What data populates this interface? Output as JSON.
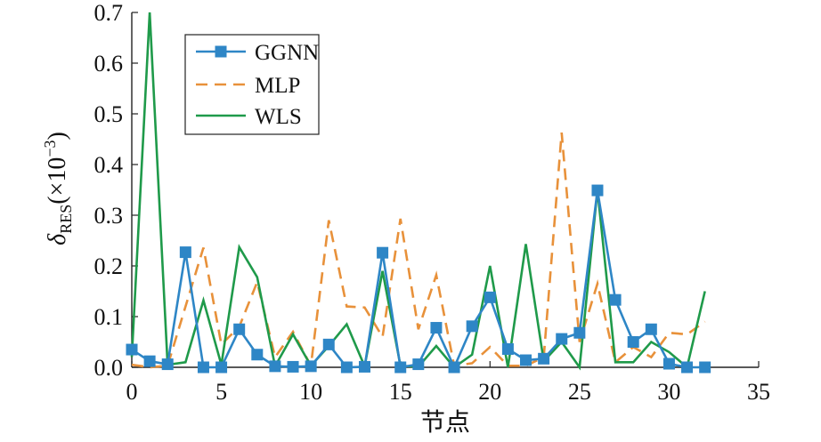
{
  "chart_data": {
    "type": "line",
    "title": "",
    "xlabel": "节点",
    "ylabel": {
      "symbol": "δ",
      "subscript": "RES",
      "unit_prefix": "(×10",
      "exponent": "−3",
      "unit_suffix": ")"
    },
    "xlim": [
      0,
      35
    ],
    "ylim": [
      0,
      0.7
    ],
    "xticks": [
      0,
      5,
      10,
      15,
      20,
      25,
      30,
      35
    ],
    "yticks": [
      0.0,
      0.1,
      0.2,
      0.3,
      0.4,
      0.5,
      0.6,
      0.7
    ],
    "xtick_labels": [
      "0",
      "5",
      "10",
      "15",
      "20",
      "25",
      "30",
      "35"
    ],
    "ytick_labels": [
      "0.0",
      "0.1",
      "0.2",
      "0.3",
      "0.4",
      "0.5",
      "0.6",
      "0.7"
    ],
    "grid": false,
    "legend_position": "top-left",
    "x": [
      0,
      1,
      2,
      3,
      4,
      5,
      6,
      7,
      8,
      9,
      10,
      11,
      12,
      13,
      14,
      15,
      16,
      17,
      18,
      19,
      20,
      21,
      22,
      23,
      24,
      25,
      26,
      27,
      28,
      29,
      30,
      31,
      32
    ],
    "series": [
      {
        "name": "GGNN",
        "color": "#2e86c6",
        "style": "solid-square-markers",
        "values": [
          0.035,
          0.012,
          0.006,
          0.227,
          0.0,
          0.0,
          0.075,
          0.025,
          0.002,
          0.001,
          0.002,
          0.045,
          0.0,
          0.001,
          0.226,
          0.0,
          0.006,
          0.078,
          0.0,
          0.081,
          0.138,
          0.036,
          0.014,
          0.017,
          0.056,
          0.068,
          0.349,
          0.133,
          0.05,
          0.075,
          0.007,
          0.0,
          0.0
        ]
      },
      {
        "name": "MLP",
        "color": "#e8913a",
        "style": "dashed",
        "values": [
          0.005,
          0.0,
          0.003,
          0.12,
          0.236,
          0.045,
          0.08,
          0.168,
          0.02,
          0.07,
          0.003,
          0.29,
          0.12,
          0.118,
          0.06,
          0.293,
          0.075,
          0.182,
          0.003,
          0.008,
          0.04,
          0.003,
          0.003,
          0.02,
          0.463,
          0.05,
          0.165,
          0.01,
          0.04,
          0.02,
          0.068,
          0.065,
          0.09
        ]
      },
      {
        "name": "WLS",
        "color": "#1f9a4a",
        "style": "solid",
        "values": [
          0.02,
          0.7,
          0.005,
          0.01,
          0.132,
          0.005,
          0.237,
          0.178,
          0.002,
          0.065,
          0.003,
          0.042,
          0.085,
          0.002,
          0.19,
          0.003,
          0.001,
          0.042,
          0.0,
          0.025,
          0.2,
          0.0,
          0.243,
          0.012,
          0.05,
          0.0,
          0.35,
          0.01,
          0.01,
          0.05,
          0.03,
          0.0,
          0.15
        ]
      }
    ]
  }
}
